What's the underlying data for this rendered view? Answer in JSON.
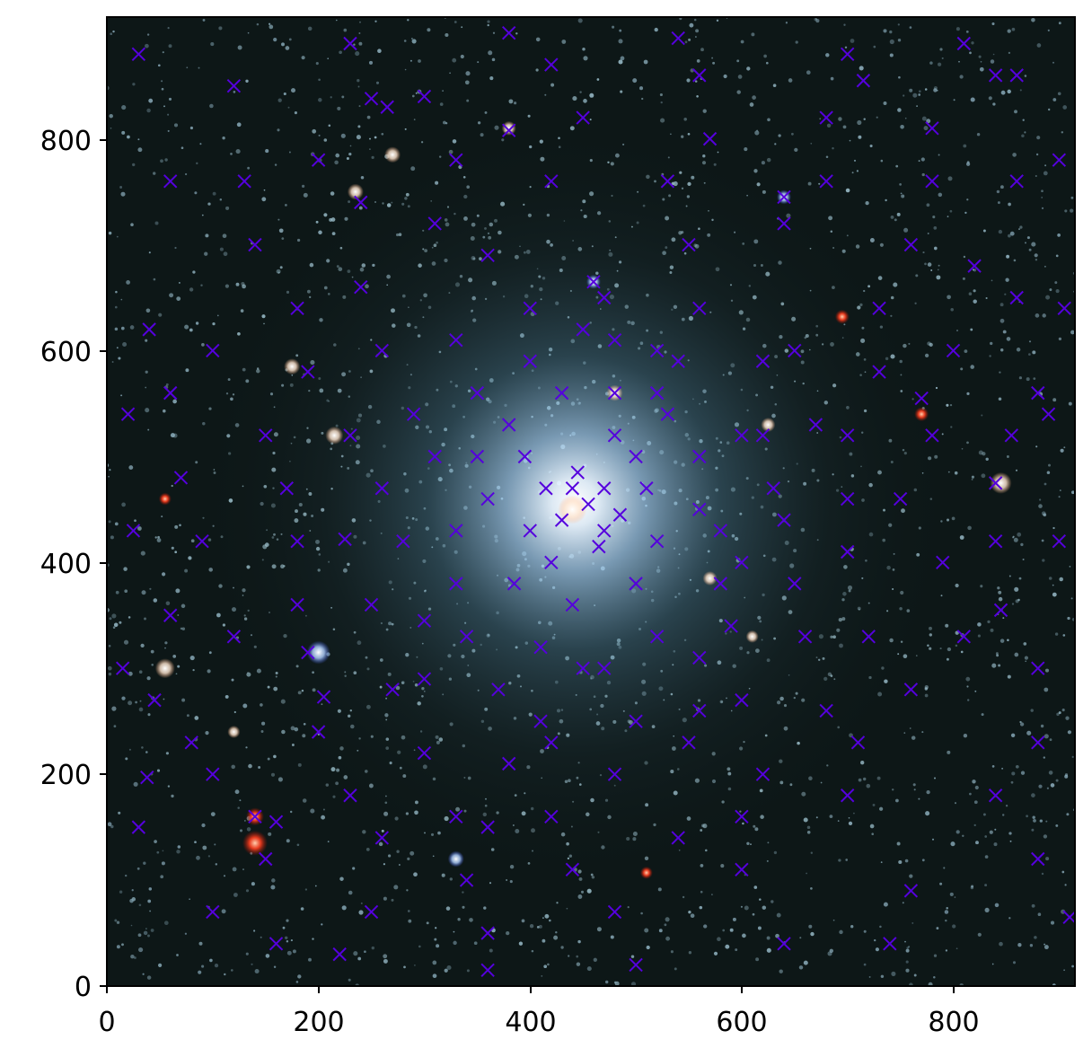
{
  "chart_data": {
    "type": "scatter",
    "title": "",
    "xlabel": "",
    "ylabel": "",
    "xlim": [
      0,
      915
    ],
    "ylim": [
      0,
      915
    ],
    "x_ticks": [
      0,
      200,
      400,
      600,
      800
    ],
    "y_ticks": [
      0,
      200,
      400,
      600,
      800
    ],
    "x_tick_labels": [
      "0",
      "200",
      "400",
      "600",
      "800"
    ],
    "y_tick_labels": [
      "0",
      "200",
      "400",
      "600",
      "800"
    ],
    "grid": false,
    "legend": "none",
    "background_image": "star-cluster-field",
    "series": [
      {
        "marker": "x",
        "color": "#5500dd",
        "points": [
          [
            20,
            540
          ],
          [
            38,
            197
          ],
          [
            100,
            200
          ],
          [
            140,
            160
          ],
          [
            160,
            155
          ],
          [
            190,
            315
          ],
          [
            205,
            273
          ],
          [
            225,
            422
          ],
          [
            250,
            838
          ],
          [
            265,
            830
          ],
          [
            380,
            808
          ],
          [
            460,
            665
          ],
          [
            480,
            610
          ],
          [
            520,
            560
          ],
          [
            540,
            590
          ],
          [
            620,
            520
          ],
          [
            640,
            745
          ],
          [
            700,
            410
          ],
          [
            715,
            855
          ],
          [
            770,
            555
          ],
          [
            840,
            475
          ],
          [
            820,
            680
          ],
          [
            855,
            520
          ],
          [
            845,
            355
          ],
          [
            880,
            230
          ],
          [
            910,
            65
          ],
          [
            860,
            860
          ],
          [
            810,
            890
          ],
          [
            780,
            810
          ],
          [
            300,
            345
          ],
          [
            340,
            330
          ],
          [
            400,
            430
          ],
          [
            420,
            400
          ],
          [
            440,
            470
          ],
          [
            470,
            430
          ],
          [
            500,
            380
          ],
          [
            510,
            470
          ],
          [
            560,
            450
          ],
          [
            580,
            380
          ],
          [
            450,
            300
          ],
          [
            410,
            250
          ],
          [
            370,
            280
          ],
          [
            330,
            430
          ],
          [
            350,
            500
          ],
          [
            380,
            530
          ],
          [
            430,
            560
          ],
          [
            480,
            520
          ],
          [
            520,
            330
          ],
          [
            560,
            310
          ],
          [
            600,
            400
          ],
          [
            630,
            470
          ],
          [
            650,
            380
          ],
          [
            600,
            270
          ],
          [
            550,
            230
          ],
          [
            480,
            200
          ],
          [
            420,
            160
          ],
          [
            360,
            150
          ],
          [
            300,
            220
          ],
          [
            270,
            280
          ],
          [
            250,
            360
          ],
          [
            260,
            470
          ],
          [
            290,
            540
          ],
          [
            330,
            610
          ],
          [
            400,
            640
          ],
          [
            470,
            650
          ],
          [
            560,
            640
          ],
          [
            650,
            600
          ],
          [
            700,
            520
          ],
          [
            720,
            330
          ],
          [
            680,
            260
          ],
          [
            620,
            200
          ],
          [
            540,
            140
          ],
          [
            440,
            110
          ],
          [
            340,
            100
          ],
          [
            260,
            140
          ],
          [
            200,
            240
          ],
          [
            180,
            360
          ],
          [
            170,
            470
          ],
          [
            190,
            580
          ],
          [
            240,
            660
          ],
          [
            310,
            720
          ],
          [
            420,
            760
          ],
          [
            530,
            760
          ],
          [
            640,
            720
          ],
          [
            730,
            640
          ],
          [
            780,
            520
          ],
          [
            790,
            400
          ],
          [
            760,
            280
          ],
          [
            700,
            180
          ],
          [
            600,
            110
          ],
          [
            480,
            70
          ],
          [
            360,
            50
          ],
          [
            250,
            70
          ],
          [
            150,
            120
          ],
          [
            80,
            230
          ],
          [
            60,
            350
          ],
          [
            70,
            480
          ],
          [
            100,
            600
          ],
          [
            140,
            700
          ],
          [
            200,
            780
          ],
          [
            300,
            840
          ],
          [
            420,
            870
          ],
          [
            560,
            860
          ],
          [
            680,
            820
          ],
          [
            780,
            760
          ],
          [
            860,
            650
          ],
          [
            890,
            540
          ],
          [
            900,
            420
          ],
          [
            880,
            300
          ],
          [
            840,
            180
          ],
          [
            760,
            90
          ],
          [
            640,
            40
          ],
          [
            500,
            20
          ],
          [
            360,
            15
          ],
          [
            220,
            30
          ],
          [
            100,
            70
          ],
          [
            30,
            150
          ],
          [
            15,
            300
          ],
          [
            25,
            430
          ],
          [
            40,
            620
          ],
          [
            60,
            760
          ],
          [
            120,
            850
          ],
          [
            230,
            890
          ],
          [
            380,
            900
          ],
          [
            540,
            895
          ],
          [
            700,
            880
          ],
          [
            840,
            860
          ],
          [
            900,
            780
          ],
          [
            905,
            640
          ],
          [
            30,
            880
          ],
          [
            455,
            455
          ],
          [
            430,
            440
          ],
          [
            470,
            470
          ],
          [
            445,
            485
          ],
          [
            485,
            445
          ],
          [
            415,
            470
          ],
          [
            465,
            415
          ],
          [
            500,
            500
          ],
          [
            395,
            500
          ],
          [
            520,
            420
          ],
          [
            385,
            380
          ],
          [
            530,
            540
          ],
          [
            360,
            460
          ],
          [
            560,
            500
          ],
          [
            440,
            360
          ],
          [
            480,
            560
          ],
          [
            410,
            320
          ],
          [
            580,
            430
          ],
          [
            330,
            380
          ],
          [
            600,
            520
          ],
          [
            400,
            590
          ],
          [
            520,
            600
          ],
          [
            310,
            500
          ],
          [
            640,
            440
          ],
          [
            420,
            230
          ],
          [
            560,
            260
          ],
          [
            280,
            420
          ],
          [
            660,
            330
          ],
          [
            350,
            560
          ],
          [
            620,
            590
          ],
          [
            470,
            300
          ],
          [
            380,
            210
          ],
          [
            590,
            340
          ],
          [
            230,
            520
          ],
          [
            700,
            460
          ],
          [
            500,
            250
          ],
          [
            300,
            290
          ],
          [
            670,
            530
          ],
          [
            450,
            620
          ],
          [
            360,
            690
          ],
          [
            550,
            700
          ],
          [
            260,
            600
          ],
          [
            730,
            580
          ],
          [
            180,
            420
          ],
          [
            750,
            460
          ],
          [
            330,
            160
          ],
          [
            600,
            160
          ],
          [
            230,
            180
          ],
          [
            710,
            230
          ],
          [
            120,
            330
          ],
          [
            810,
            330
          ],
          [
            90,
            420
          ],
          [
            840,
            420
          ],
          [
            150,
            520
          ],
          [
            800,
            600
          ],
          [
            180,
            640
          ],
          [
            760,
            700
          ],
          [
            240,
            740
          ],
          [
            680,
            760
          ],
          [
            330,
            780
          ],
          [
            570,
            800
          ],
          [
            450,
            820
          ],
          [
            130,
            760
          ],
          [
            860,
            760
          ],
          [
            60,
            560
          ],
          [
            880,
            560
          ],
          [
            45,
            270
          ],
          [
            880,
            120
          ],
          [
            160,
            40
          ],
          [
            740,
            40
          ]
        ]
      }
    ]
  }
}
